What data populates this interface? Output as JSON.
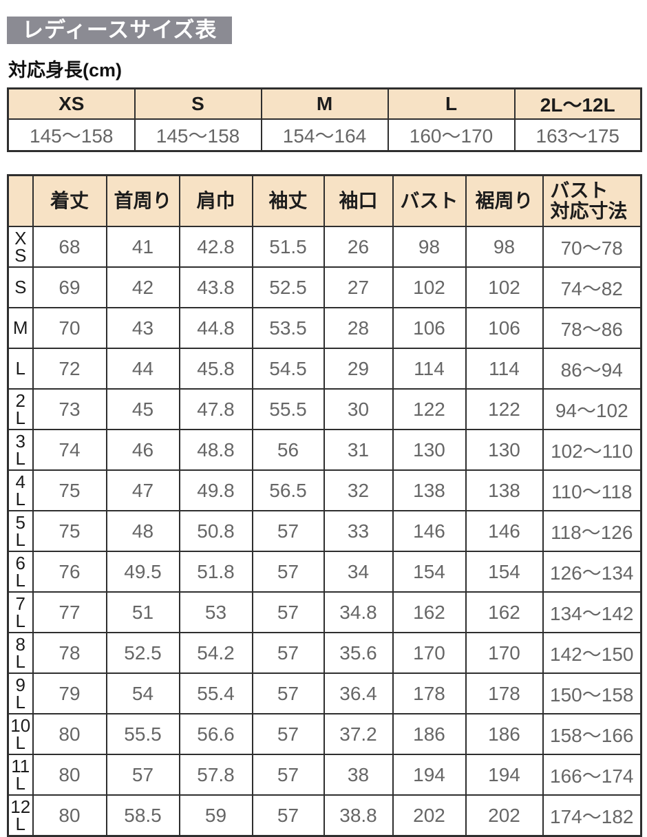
{
  "page": {
    "title": "レディースサイズ表",
    "height_label": "対応身長(cm)"
  },
  "colors": {
    "title_bg": "#8b8b93",
    "title_text": "#ffffff",
    "header_bg": "#f7e2c5",
    "border": "#2e2e2e",
    "value_text": "#666666",
    "label_text": "#1c1c1c"
  },
  "height_table": {
    "headers": [
      "XS",
      "S",
      "M",
      "L",
      "2L〜12L"
    ],
    "values": [
      "145〜158",
      "145〜158",
      "154〜164",
      "160〜170",
      "163〜175"
    ]
  },
  "size_table": {
    "columns": [
      "着丈",
      "首周り",
      "肩巾",
      "袖丈",
      "袖口",
      "バスト",
      "裾周り",
      "バスト\n対応寸法"
    ],
    "rows": [
      {
        "size": "XS",
        "size_display": "X\nS",
        "values": [
          "68",
          "41",
          "42.8",
          "51.5",
          "26",
          "98",
          "98",
          "70〜78"
        ]
      },
      {
        "size": "S",
        "size_display": "S",
        "values": [
          "69",
          "42",
          "43.8",
          "52.5",
          "27",
          "102",
          "102",
          "74〜82"
        ]
      },
      {
        "size": "M",
        "size_display": "M",
        "values": [
          "70",
          "43",
          "44.8",
          "53.5",
          "28",
          "106",
          "106",
          "78〜86"
        ]
      },
      {
        "size": "L",
        "size_display": "L",
        "values": [
          "72",
          "44",
          "45.8",
          "54.5",
          "29",
          "114",
          "114",
          "86〜94"
        ]
      },
      {
        "size": "2L",
        "size_display": "2\nL",
        "values": [
          "73",
          "45",
          "47.8",
          "55.5",
          "30",
          "122",
          "122",
          "94〜102"
        ]
      },
      {
        "size": "3L",
        "size_display": "3\nL",
        "values": [
          "74",
          "46",
          "48.8",
          "56",
          "31",
          "130",
          "130",
          "102〜110"
        ]
      },
      {
        "size": "4L",
        "size_display": "4\nL",
        "values": [
          "75",
          "47",
          "49.8",
          "56.5",
          "32",
          "138",
          "138",
          "110〜118"
        ]
      },
      {
        "size": "5L",
        "size_display": "5\nL",
        "values": [
          "75",
          "48",
          "50.8",
          "57",
          "33",
          "146",
          "146",
          "118〜126"
        ]
      },
      {
        "size": "6L",
        "size_display": "6\nL",
        "values": [
          "76",
          "49.5",
          "51.8",
          "57",
          "34",
          "154",
          "154",
          "126〜134"
        ]
      },
      {
        "size": "7L",
        "size_display": "7\nL",
        "values": [
          "77",
          "51",
          "53",
          "57",
          "34.8",
          "162",
          "162",
          "134〜142"
        ]
      },
      {
        "size": "8L",
        "size_display": "8\nL",
        "values": [
          "78",
          "52.5",
          "54.2",
          "57",
          "35.6",
          "170",
          "170",
          "142〜150"
        ]
      },
      {
        "size": "9L",
        "size_display": "9\nL",
        "values": [
          "79",
          "54",
          "55.4",
          "57",
          "36.4",
          "178",
          "178",
          "150〜158"
        ]
      },
      {
        "size": "10L",
        "size_display": "10\nL",
        "values": [
          "80",
          "55.5",
          "56.6",
          "57",
          "37.2",
          "186",
          "186",
          "158〜166"
        ]
      },
      {
        "size": "11L",
        "size_display": "11\nL",
        "values": [
          "80",
          "57",
          "57.8",
          "57",
          "38",
          "194",
          "194",
          "166〜174"
        ]
      },
      {
        "size": "12L",
        "size_display": "12\nL",
        "values": [
          "80",
          "58.5",
          "59",
          "57",
          "38.8",
          "202",
          "202",
          "174〜182"
        ]
      }
    ]
  }
}
